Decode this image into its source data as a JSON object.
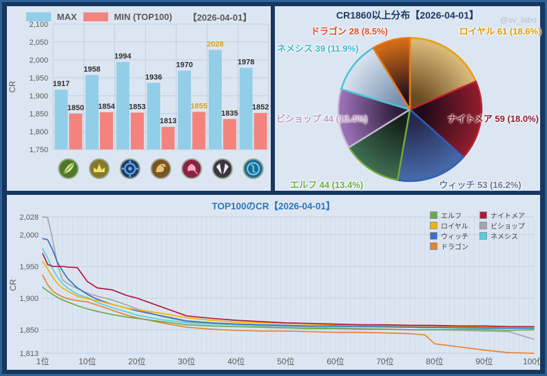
{
  "chart_data": [
    {
      "type": "bar",
      "date_label": "【2026-04-01】",
      "ylabel": "CR",
      "ylim": [
        1750,
        2100
      ],
      "yticks": [
        1750,
        1800,
        1850,
        1900,
        1950,
        2000,
        2050,
        2100
      ],
      "categories": [
        {
          "label": "エルフ",
          "icon": "elf-class-icon"
        },
        {
          "label": "ロイヤル",
          "icon": "royal-class-icon"
        },
        {
          "label": "ウィッチ",
          "icon": "witch-class-icon"
        },
        {
          "label": "ドラゴン",
          "icon": "dragon-class-icon"
        },
        {
          "label": "ナイトメア",
          "icon": "nightmare-class-icon"
        },
        {
          "label": "ビショップ",
          "icon": "bishop-class-icon"
        },
        {
          "label": "ネメシス",
          "icon": "nemesis-class-icon"
        }
      ],
      "series": [
        {
          "name": "MAX",
          "color": "#92cee8",
          "values": [
            1917,
            1958,
            1994,
            1936,
            1970,
            2028,
            1978
          ]
        },
        {
          "name": "MIN (TOP100)",
          "color": "#f4837e",
          "values": [
            1850,
            1854,
            1853,
            1813,
            1855,
            1835,
            1852
          ]
        }
      ],
      "highlight_color": "#d9a21b",
      "value_label_color": "#2e2e2e",
      "axis_color": "#595959",
      "grid_color": "#c2cede"
    },
    {
      "type": "pie",
      "title": "CR1860以上分布【2026-04-01】",
      "watermark": "@sv_labo",
      "slices": [
        {
          "label": "ロイヤル",
          "count": 61,
          "pct": "18.6%",
          "label_color": "#e09c00",
          "stroke": "#e8a010",
          "fill_outer": "#d8b878",
          "fill_inner": "#6a4a20"
        },
        {
          "label": "ナイトメア",
          "count": 59,
          "pct": "18.0%",
          "label_color": "#8c1a2e",
          "stroke": "#c02030",
          "fill_outer": "#8a1c2c",
          "fill_inner": "#200a18"
        },
        {
          "label": "ウィッチ",
          "count": 53,
          "pct": "16.2%",
          "label_color": "#64759b",
          "stroke": "#3060b8",
          "fill_outer": "#4668a8",
          "fill_inner": "#262a4e"
        },
        {
          "label": "エルフ",
          "count": 44,
          "pct": "13.4%",
          "label_color": "#6fae48",
          "stroke": "#74aa3c",
          "fill_outer": "#3c6a50",
          "fill_inner": "#141f18"
        },
        {
          "label": "ビショップ",
          "count": 44,
          "pct": "13.4%",
          "label_color": "#bb9cc4",
          "stroke": "#c8b8d4",
          "fill_outer": "#9a70b4",
          "fill_inner": "#2e1e3e"
        },
        {
          "label": "ネメシス",
          "count": 39,
          "pct": "11.9%",
          "label_color": "#3fb6c9",
          "stroke": "#48c2d4",
          "fill_outer": "#d4e0ec",
          "fill_inner": "#7890b0"
        },
        {
          "label": "ドラゴン",
          "count": 28,
          "pct": "8.5%",
          "label_color": "#e04b28",
          "stroke": "#e87818",
          "fill_outer": "#d06a18",
          "fill_inner": "#241018"
        }
      ]
    },
    {
      "type": "line",
      "title": "TOP100のCR【2026-04-01】",
      "ylabel": "CR",
      "ylim": [
        1813,
        2028
      ],
      "xlim": [
        1,
        100
      ],
      "yticks": [
        1813,
        1850,
        1900,
        1950,
        2000,
        2028
      ],
      "xticks": [
        1,
        10,
        20,
        30,
        40,
        50,
        60,
        70,
        80,
        90,
        100
      ],
      "xtick_suffix": "位",
      "axis_color": "#595959",
      "grid_color": "#c2cede",
      "control_x": [
        1,
        2,
        3,
        4,
        5,
        6,
        8,
        10,
        12,
        15,
        18,
        20,
        25,
        30,
        35,
        40,
        45,
        50,
        55,
        60,
        65,
        70,
        75,
        78,
        80,
        85,
        90,
        95,
        100
      ],
      "series": [
        {
          "name": "エルフ",
          "key": "elf",
          "color": "#6aa84f",
          "values": [
            1917,
            1911,
            1906,
            1901,
            1897,
            1894,
            1888,
            1883,
            1879,
            1874,
            1870,
            1868,
            1863,
            1858,
            1856,
            1855,
            1854,
            1853,
            1852,
            1852,
            1851,
            1851,
            1850,
            1850,
            1850,
            1851,
            1850,
            1849,
            1850
          ]
        },
        {
          "name": "ロイヤル",
          "key": "royal",
          "color": "#f0b400",
          "values": [
            1958,
            1946,
            1933,
            1923,
            1916,
            1911,
            1903,
            1899,
            1896,
            1890,
            1884,
            1882,
            1876,
            1869,
            1865,
            1862,
            1861,
            1860,
            1859,
            1858,
            1857,
            1857,
            1856,
            1856,
            1856,
            1855,
            1855,
            1854,
            1854
          ]
        },
        {
          "name": "ウィッチ",
          "key": "witch",
          "color": "#3d6ebf",
          "values": [
            1994,
            1992,
            1976,
            1956,
            1943,
            1931,
            1916,
            1906,
            1898,
            1890,
            1884,
            1880,
            1872,
            1864,
            1861,
            1859,
            1858,
            1857,
            1856,
            1856,
            1855,
            1855,
            1854,
            1854,
            1854,
            1854,
            1853,
            1853,
            1853
          ]
        },
        {
          "name": "ドラゴン",
          "key": "dragon",
          "color": "#e8822e",
          "values": [
            1936,
            1921,
            1911,
            1906,
            1902,
            1899,
            1896,
            1894,
            1889,
            1881,
            1873,
            1869,
            1861,
            1854,
            1851,
            1849,
            1848,
            1848,
            1847,
            1846,
            1846,
            1845,
            1844,
            1842,
            1828,
            1823,
            1818,
            1814,
            1813
          ]
        },
        {
          "name": "ナイトメア",
          "key": "nightmare",
          "color": "#b5173b",
          "values": [
            1970,
            1953,
            1950,
            1950,
            1950,
            1949,
            1948,
            1926,
            1916,
            1913,
            1904,
            1900,
            1886,
            1872,
            1868,
            1865,
            1863,
            1861,
            1860,
            1859,
            1858,
            1858,
            1857,
            1857,
            1857,
            1856,
            1856,
            1855,
            1855
          ]
        },
        {
          "name": "ビショップ",
          "key": "bishop",
          "color": "#a6a6a6",
          "values": [
            2028,
            2027,
            1992,
            1952,
            1929,
            1923,
            1915,
            1908,
            1903,
            1897,
            1889,
            1883,
            1871,
            1863,
            1860,
            1858,
            1856,
            1855,
            1854,
            1853,
            1852,
            1851,
            1850,
            1850,
            1850,
            1849,
            1848,
            1847,
            1835
          ]
        },
        {
          "name": "ネメシス",
          "key": "nemesis",
          "color": "#55cfdc",
          "values": [
            1978,
            1963,
            1946,
            1933,
            1923,
            1916,
            1906,
            1901,
            1893,
            1885,
            1878,
            1873,
            1866,
            1861,
            1859,
            1858,
            1857,
            1856,
            1856,
            1855,
            1855,
            1854,
            1854,
            1853,
            1853,
            1853,
            1852,
            1852,
            1852
          ]
        }
      ]
    }
  ]
}
